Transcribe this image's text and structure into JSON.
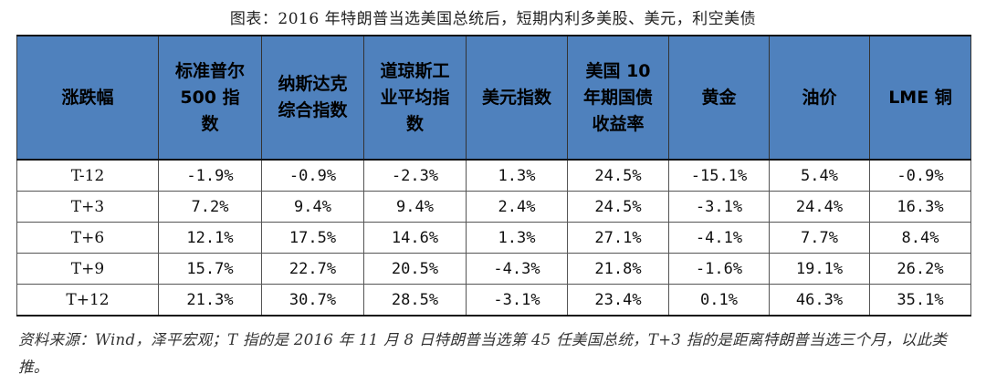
{
  "title": "图表：2016 年特朗普当选美国总统后，短期内利多美股、美元，利空美债",
  "table": {
    "headers": [
      "涨跌幅",
      "标准普尔 500 指数",
      "纳斯达克综合指数",
      "道琼斯工业平均指数",
      "美元指数",
      "美国 10 年期国债收益率",
      "黄金",
      "油价",
      "LME 铜"
    ],
    "rows": [
      [
        "T-12",
        "-1.9%",
        "-0.9%",
        "-2.3%",
        "1.3%",
        "24.5%",
        "-15.1%",
        "5.4%",
        "-0.9%"
      ],
      [
        "T+3",
        "7.2%",
        "9.4%",
        "9.4%",
        "2.4%",
        "24.5%",
        "-3.1%",
        "24.4%",
        "16.3%"
      ],
      [
        "T+6",
        "12.1%",
        "17.5%",
        "14.6%",
        "1.3%",
        "27.1%",
        "-4.1%",
        "7.7%",
        "8.4%"
      ],
      [
        "T+9",
        "15.7%",
        "22.7%",
        "20.5%",
        "-4.3%",
        "21.8%",
        "-1.6%",
        "19.1%",
        "26.2%"
      ],
      [
        "T+12",
        "21.3%",
        "30.7%",
        "28.5%",
        "-3.1%",
        "23.4%",
        "0.1%",
        "46.3%",
        "35.1%"
      ]
    ]
  },
  "source_note": "资料来源：Wind，泽平宏观；T 指的是 2016 年 11 月 8 日特朗普当选第 45 任美国总统，T+3 指的是距离特朗普当选三个月，以此类推。",
  "colors": {
    "header_bg": "#4f81bd"
  }
}
